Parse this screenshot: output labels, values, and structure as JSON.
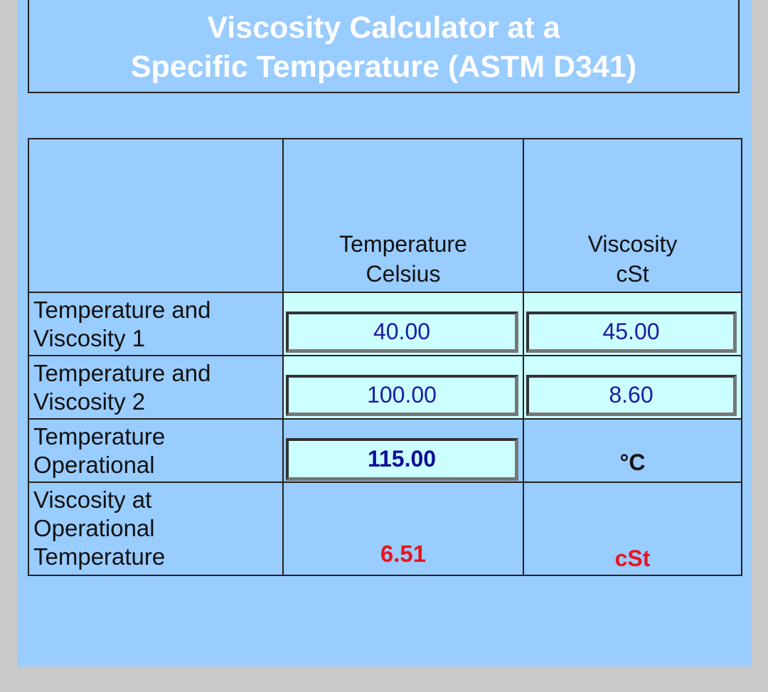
{
  "title": {
    "line1": "Viscosity Calculator at a",
    "line2": "Specific Temperature (ASTM D341)"
  },
  "table": {
    "headers": {
      "label": "",
      "temperature_line1": "Temperature",
      "temperature_line2": "Celsius",
      "viscosity_line1": "Viscosity",
      "viscosity_line2": "cSt"
    },
    "rows": [
      {
        "label_line1": "Temperature and",
        "label_line2": "Viscosity 1",
        "temperature": "40.00",
        "viscosity": "45.00"
      },
      {
        "label_line1": "Temperature and",
        "label_line2": "Viscosity 2",
        "temperature": "100.00",
        "viscosity": "8.60"
      }
    ],
    "operational": {
      "label_line1": "Temperature",
      "label_line2": "Operational",
      "temperature": "115.00",
      "unit": "°C"
    },
    "result": {
      "label_line1": "Viscosity at",
      "label_line2": "Operational",
      "label_line3": "Temperature",
      "value": "6.51",
      "unit": "cSt"
    }
  },
  "colors": {
    "background": "#99ccff",
    "input_background": "#ccffff",
    "title_text": "#ffffff",
    "input_text": "#1a1aa6",
    "result_text": "#e8141e"
  }
}
